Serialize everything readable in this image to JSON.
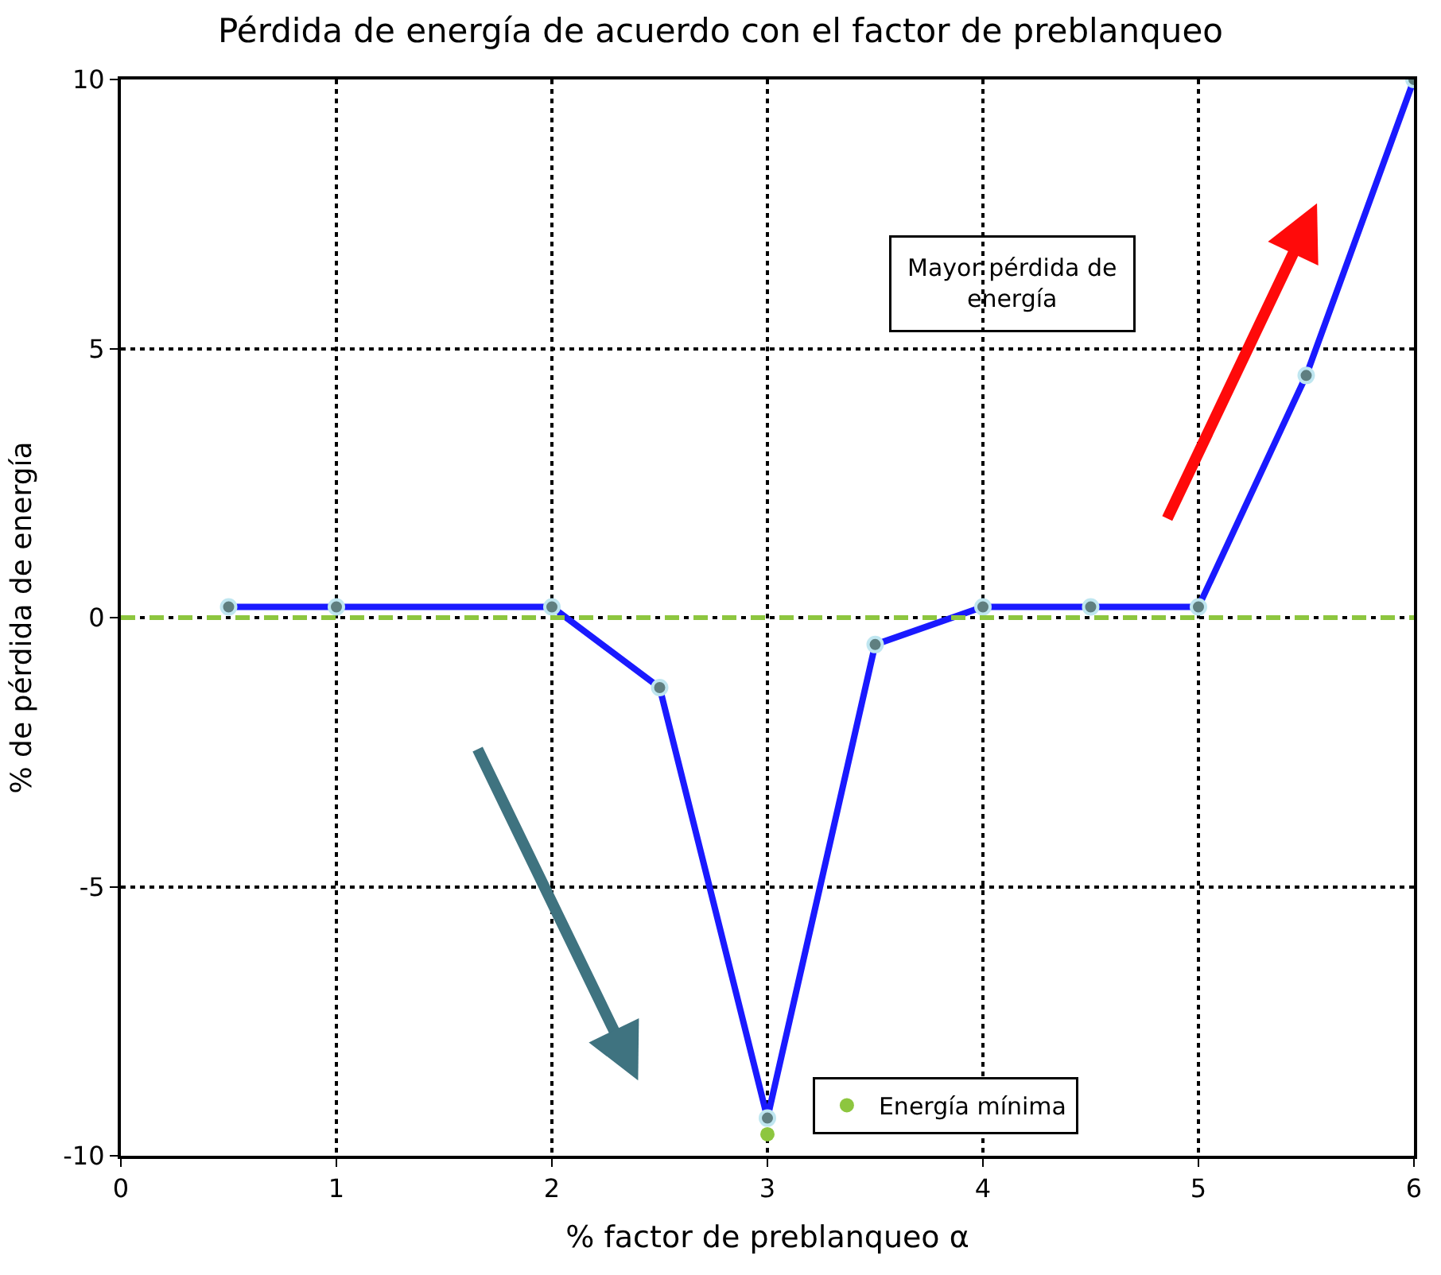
{
  "chart_data": {
    "type": "line",
    "title": "Pérdida de energía de acuerdo con el factor de preblanqueo",
    "xlabel": "% factor de preblanqueo α",
    "ylabel": "% de pérdida de energía",
    "series": [
      {
        "color": "#1a1aff",
        "x": [
          0.5,
          1,
          2,
          2.5,
          3,
          3.5,
          4,
          4.5,
          5,
          5.5,
          6
        ],
        "values": [
          0.2,
          0.2,
          0.2,
          -1.3,
          -9.3,
          -0.5,
          0.2,
          0.2,
          0.2,
          4.5,
          10
        ]
      },
      {
        "type": "scatter",
        "name": "Energía mínima",
        "color": "#8dc63f",
        "x": [
          3
        ],
        "values": [
          -9.6
        ]
      }
    ],
    "ref_lines": [
      {
        "axis": "y",
        "value": 0,
        "color": "#8dc63f",
        "line_style": "dashed"
      }
    ],
    "annotations": [
      "Mayor pérdida de energía"
    ],
    "xlim": [
      0,
      6
    ],
    "xticks": [
      0,
      1,
      2,
      3,
      4,
      5,
      6
    ],
    "ylim": [
      -10,
      10
    ],
    "yticks": [
      -10,
      -5,
      0,
      5,
      10
    ],
    "grid": true,
    "legend": "bottom",
    "marker": "circle",
    "line_style": "solid"
  }
}
